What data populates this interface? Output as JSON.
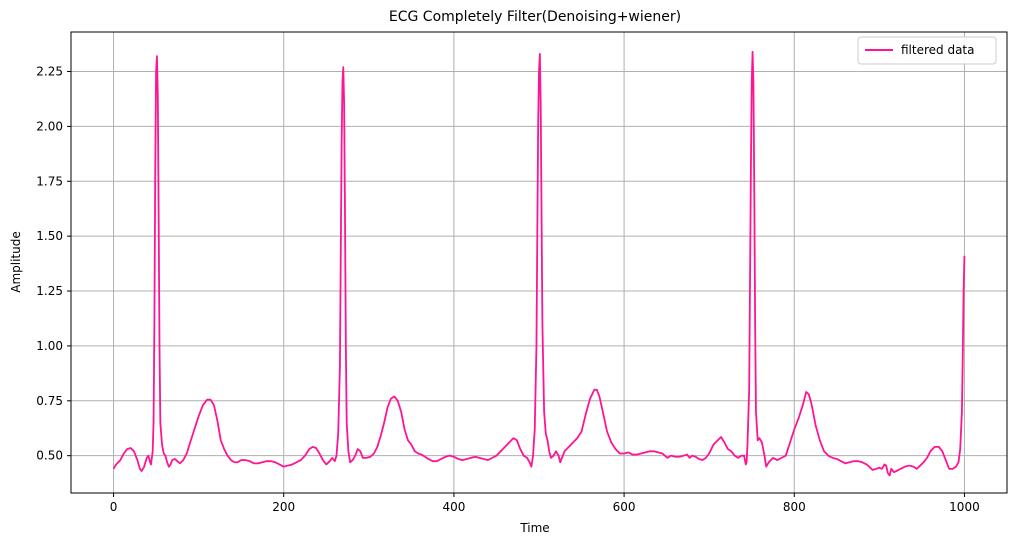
{
  "chart_data": {
    "type": "line",
    "title": "ECG Completely Filter(Denoising+wiener)",
    "xlabel": "Time",
    "ylabel": "Amplitude",
    "xlim": [
      -50,
      1050
    ],
    "ylim": [
      0.33,
      2.43
    ],
    "xticks": [
      0,
      200,
      400,
      600,
      800,
      1000
    ],
    "yticks": [
      0.5,
      0.75,
      1.0,
      1.25,
      1.5,
      1.75,
      2.0,
      2.25
    ],
    "xtick_labels": [
      "0",
      "200",
      "400",
      "600",
      "800",
      "1000"
    ],
    "ytick_labels": [
      "0.50",
      "0.75",
      "1.00",
      "1.25",
      "1.50",
      "1.75",
      "2.00",
      "2.25"
    ],
    "grid": true,
    "legend_position": "top-right",
    "series": [
      {
        "name": "filtered data",
        "color": "#ff1493",
        "points": [
          [
            0,
            0.44
          ],
          [
            3,
            0.46
          ],
          [
            8,
            0.48
          ],
          [
            12,
            0.51
          ],
          [
            16,
            0.53
          ],
          [
            20,
            0.535
          ],
          [
            24,
            0.52
          ],
          [
            28,
            0.48
          ],
          [
            31,
            0.44
          ],
          [
            33,
            0.43
          ],
          [
            36,
            0.45
          ],
          [
            39,
            0.49
          ],
          [
            41,
            0.5
          ],
          [
            43,
            0.47
          ],
          [
            44,
            0.46
          ],
          [
            46,
            0.52
          ],
          [
            47,
            0.65
          ],
          [
            48,
            1.1
          ],
          [
            49,
            1.8
          ],
          [
            50,
            2.25
          ],
          [
            51,
            2.32
          ],
          [
            52,
            2.15
          ],
          [
            53,
            1.6
          ],
          [
            54,
            1.0
          ],
          [
            55,
            0.65
          ],
          [
            57,
            0.55
          ],
          [
            59,
            0.51
          ],
          [
            61,
            0.5
          ],
          [
            63,
            0.47
          ],
          [
            65,
            0.45
          ],
          [
            67,
            0.46
          ],
          [
            69,
            0.48
          ],
          [
            72,
            0.485
          ],
          [
            75,
            0.475
          ],
          [
            78,
            0.465
          ],
          [
            82,
            0.48
          ],
          [
            86,
            0.51
          ],
          [
            90,
            0.56
          ],
          [
            95,
            0.62
          ],
          [
            100,
            0.68
          ],
          [
            105,
            0.73
          ],
          [
            110,
            0.755
          ],
          [
            114,
            0.755
          ],
          [
            118,
            0.73
          ],
          [
            122,
            0.66
          ],
          [
            126,
            0.57
          ],
          [
            130,
            0.53
          ],
          [
            134,
            0.5
          ],
          [
            138,
            0.48
          ],
          [
            142,
            0.47
          ],
          [
            146,
            0.47
          ],
          [
            150,
            0.48
          ],
          [
            155,
            0.48
          ],
          [
            160,
            0.475
          ],
          [
            165,
            0.465
          ],
          [
            170,
            0.465
          ],
          [
            175,
            0.47
          ],
          [
            180,
            0.475
          ],
          [
            185,
            0.475
          ],
          [
            190,
            0.47
          ],
          [
            195,
            0.46
          ],
          [
            200,
            0.45
          ],
          [
            205,
            0.455
          ],
          [
            210,
            0.46
          ],
          [
            215,
            0.47
          ],
          [
            220,
            0.48
          ],
          [
            225,
            0.5
          ],
          [
            230,
            0.53
          ],
          [
            234,
            0.54
          ],
          [
            238,
            0.535
          ],
          [
            242,
            0.51
          ],
          [
            246,
            0.48
          ],
          [
            250,
            0.46
          ],
          [
            254,
            0.475
          ],
          [
            257,
            0.49
          ],
          [
            260,
            0.475
          ],
          [
            262,
            0.5
          ],
          [
            264,
            0.6
          ],
          [
            266,
            0.9
          ],
          [
            267,
            1.4
          ],
          [
            268,
            1.9
          ],
          [
            269,
            2.2
          ],
          [
            270,
            2.27
          ],
          [
            271,
            2.1
          ],
          [
            272,
            1.6
          ],
          [
            273,
            1.0
          ],
          [
            274,
            0.65
          ],
          [
            276,
            0.52
          ],
          [
            278,
            0.47
          ],
          [
            281,
            0.48
          ],
          [
            284,
            0.5
          ],
          [
            287,
            0.53
          ],
          [
            290,
            0.52
          ],
          [
            293,
            0.49
          ],
          [
            297,
            0.49
          ],
          [
            302,
            0.495
          ],
          [
            306,
            0.51
          ],
          [
            310,
            0.54
          ],
          [
            314,
            0.59
          ],
          [
            318,
            0.65
          ],
          [
            322,
            0.72
          ],
          [
            326,
            0.76
          ],
          [
            330,
            0.77
          ],
          [
            334,
            0.75
          ],
          [
            338,
            0.7
          ],
          [
            342,
            0.62
          ],
          [
            346,
            0.57
          ],
          [
            350,
            0.55
          ],
          [
            354,
            0.52
          ],
          [
            358,
            0.51
          ],
          [
            362,
            0.505
          ],
          [
            366,
            0.495
          ],
          [
            370,
            0.485
          ],
          [
            375,
            0.475
          ],
          [
            380,
            0.475
          ],
          [
            385,
            0.485
          ],
          [
            390,
            0.495
          ],
          [
            395,
            0.5
          ],
          [
            400,
            0.495
          ],
          [
            405,
            0.485
          ],
          [
            410,
            0.48
          ],
          [
            415,
            0.485
          ],
          [
            420,
            0.49
          ],
          [
            425,
            0.495
          ],
          [
            430,
            0.49
          ],
          [
            435,
            0.485
          ],
          [
            440,
            0.48
          ],
          [
            445,
            0.49
          ],
          [
            450,
            0.5
          ],
          [
            455,
            0.52
          ],
          [
            460,
            0.54
          ],
          [
            465,
            0.56
          ],
          [
            470,
            0.58
          ],
          [
            474,
            0.57
          ],
          [
            478,
            0.53
          ],
          [
            482,
            0.5
          ],
          [
            486,
            0.49
          ],
          [
            489,
            0.47
          ],
          [
            491,
            0.45
          ],
          [
            493,
            0.5
          ],
          [
            495,
            0.62
          ],
          [
            497,
            1.0
          ],
          [
            498,
            1.5
          ],
          [
            499,
            2.0
          ],
          [
            500,
            2.25
          ],
          [
            501,
            2.33
          ],
          [
            502,
            2.1
          ],
          [
            503,
            1.6
          ],
          [
            504,
            1.1
          ],
          [
            506,
            0.7
          ],
          [
            508,
            0.6
          ],
          [
            510,
            0.57
          ],
          [
            512,
            0.52
          ],
          [
            514,
            0.49
          ],
          [
            517,
            0.5
          ],
          [
            520,
            0.52
          ],
          [
            523,
            0.5
          ],
          [
            525,
            0.47
          ],
          [
            527,
            0.49
          ],
          [
            530,
            0.52
          ],
          [
            535,
            0.54
          ],
          [
            540,
            0.56
          ],
          [
            545,
            0.58
          ],
          [
            550,
            0.61
          ],
          [
            555,
            0.69
          ],
          [
            560,
            0.76
          ],
          [
            565,
            0.8
          ],
          [
            568,
            0.8
          ],
          [
            571,
            0.77
          ],
          [
            575,
            0.7
          ],
          [
            580,
            0.61
          ],
          [
            585,
            0.56
          ],
          [
            590,
            0.53
          ],
          [
            595,
            0.51
          ],
          [
            600,
            0.51
          ],
          [
            605,
            0.515
          ],
          [
            610,
            0.505
          ],
          [
            615,
            0.505
          ],
          [
            620,
            0.51
          ],
          [
            625,
            0.515
          ],
          [
            630,
            0.52
          ],
          [
            635,
            0.52
          ],
          [
            640,
            0.515
          ],
          [
            645,
            0.51
          ],
          [
            648,
            0.5
          ],
          [
            651,
            0.49
          ],
          [
            655,
            0.5
          ],
          [
            660,
            0.495
          ],
          [
            665,
            0.495
          ],
          [
            670,
            0.5
          ],
          [
            674,
            0.505
          ],
          [
            677,
            0.49
          ],
          [
            680,
            0.5
          ],
          [
            684,
            0.495
          ],
          [
            688,
            0.485
          ],
          [
            692,
            0.48
          ],
          [
            696,
            0.49
          ],
          [
            700,
            0.51
          ],
          [
            705,
            0.55
          ],
          [
            710,
            0.57
          ],
          [
            714,
            0.585
          ],
          [
            718,
            0.56
          ],
          [
            722,
            0.53
          ],
          [
            726,
            0.52
          ],
          [
            730,
            0.5
          ],
          [
            734,
            0.49
          ],
          [
            738,
            0.5
          ],
          [
            741,
            0.5
          ],
          [
            743,
            0.46
          ],
          [
            744,
            0.47
          ],
          [
            745,
            0.55
          ],
          [
            747,
            0.8
          ],
          [
            748,
            1.3
          ],
          [
            749,
            1.8
          ],
          [
            750,
            2.2
          ],
          [
            751,
            2.34
          ],
          [
            752,
            2.2
          ],
          [
            753,
            1.7
          ],
          [
            754,
            1.1
          ],
          [
            755,
            0.7
          ],
          [
            757,
            0.57
          ],
          [
            759,
            0.58
          ],
          [
            762,
            0.56
          ],
          [
            765,
            0.5
          ],
          [
            767,
            0.45
          ],
          [
            770,
            0.47
          ],
          [
            775,
            0.49
          ],
          [
            780,
            0.48
          ],
          [
            785,
            0.49
          ],
          [
            790,
            0.5
          ],
          [
            795,
            0.56
          ],
          [
            800,
            0.62
          ],
          [
            805,
            0.67
          ],
          [
            810,
            0.73
          ],
          [
            814,
            0.79
          ],
          [
            817,
            0.78
          ],
          [
            820,
            0.74
          ],
          [
            825,
            0.64
          ],
          [
            830,
            0.57
          ],
          [
            835,
            0.52
          ],
          [
            840,
            0.5
          ],
          [
            845,
            0.49
          ],
          [
            850,
            0.485
          ],
          [
            855,
            0.475
          ],
          [
            860,
            0.465
          ],
          [
            865,
            0.47
          ],
          [
            870,
            0.475
          ],
          [
            875,
            0.475
          ],
          [
            880,
            0.47
          ],
          [
            885,
            0.46
          ],
          [
            888,
            0.45
          ],
          [
            892,
            0.435
          ],
          [
            896,
            0.44
          ],
          [
            900,
            0.445
          ],
          [
            903,
            0.44
          ],
          [
            906,
            0.46
          ],
          [
            908,
            0.455
          ],
          [
            910,
            0.42
          ],
          [
            912,
            0.41
          ],
          [
            914,
            0.44
          ],
          [
            917,
            0.425
          ],
          [
            920,
            0.43
          ],
          [
            925,
            0.44
          ],
          [
            930,
            0.45
          ],
          [
            935,
            0.455
          ],
          [
            940,
            0.45
          ],
          [
            944,
            0.44
          ],
          [
            948,
            0.455
          ],
          [
            952,
            0.47
          ],
          [
            956,
            0.49
          ],
          [
            960,
            0.52
          ],
          [
            965,
            0.54
          ],
          [
            970,
            0.54
          ],
          [
            974,
            0.52
          ],
          [
            978,
            0.48
          ],
          [
            982,
            0.44
          ],
          [
            986,
            0.44
          ],
          [
            990,
            0.45
          ],
          [
            993,
            0.47
          ],
          [
            995,
            0.53
          ],
          [
            997,
            0.7
          ],
          [
            998,
            0.95
          ],
          [
            999,
            1.25
          ],
          [
            1000,
            1.41
          ]
        ]
      }
    ]
  }
}
